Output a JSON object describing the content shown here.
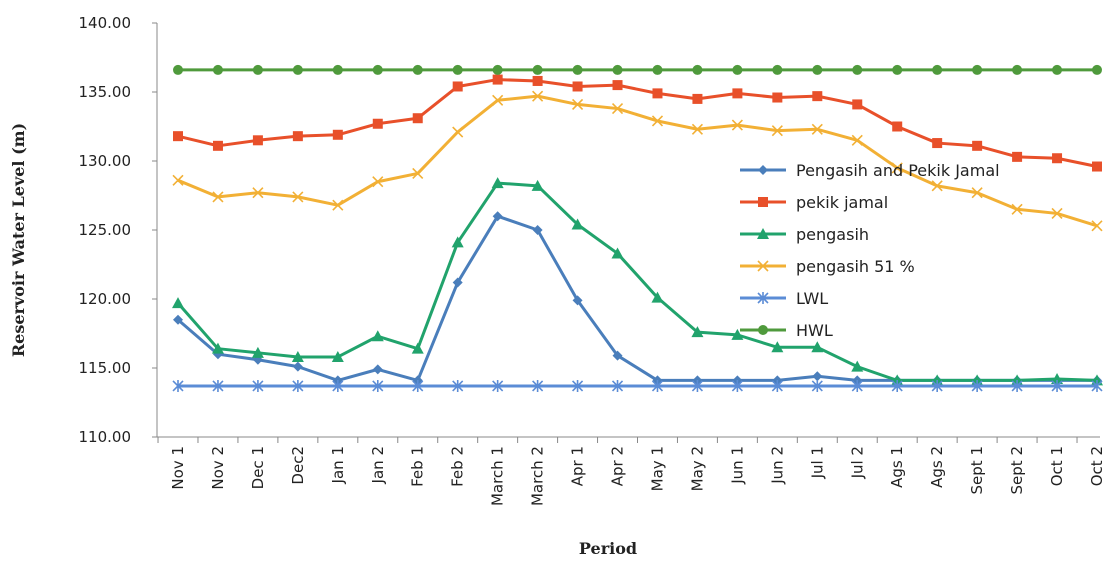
{
  "chart_data": {
    "type": "line",
    "xlabel": "Period",
    "ylabel": "Reservoir Water Level (m)",
    "ylim": [
      110,
      140
    ],
    "yticks": [
      "110.00",
      "115.00",
      "120.00",
      "125.00",
      "130.00",
      "135.00",
      "140.00"
    ],
    "grid": false,
    "legend_position": "right",
    "categories": [
      "Nov 1",
      "Nov 2",
      "Dec 1",
      "Dec2",
      "Jan 1",
      "Jan 2",
      "Feb 1",
      "Feb 2",
      "March 1",
      "March 2",
      "Apr 1",
      "Apr 2",
      "May 1",
      "May 2",
      "Jun 1",
      "Jun 2",
      "Jul 1",
      "Jul 2",
      "Ags 1",
      "Ags 2",
      "Sept 1",
      "Sept 2",
      "Oct 1",
      "Oct 2"
    ],
    "series": [
      {
        "name": "Pengasih and Pekik Jamal",
        "color": "#4a7ebb",
        "marker": "diamond",
        "values": [
          118.5,
          116.0,
          115.6,
          115.1,
          114.1,
          114.9,
          114.1,
          121.2,
          126.0,
          125.0,
          119.9,
          115.9,
          114.1,
          114.1,
          114.1,
          114.1,
          114.4,
          114.1,
          114.1,
          114.1,
          114.1,
          114.1,
          114.1,
          114.1
        ]
      },
      {
        "name": "pekik jamal",
        "color": "#e8502a",
        "marker": "square",
        "values": [
          131.8,
          131.1,
          131.5,
          131.8,
          131.9,
          132.7,
          133.1,
          135.4,
          135.9,
          135.8,
          135.4,
          135.5,
          134.9,
          134.5,
          134.9,
          134.6,
          134.7,
          134.1,
          132.5,
          131.3,
          131.1,
          130.3,
          130.2,
          129.6
        ]
      },
      {
        "name": "pengasih",
        "color": "#21a36c",
        "marker": "triangle",
        "values": [
          119.7,
          116.4,
          116.1,
          115.8,
          115.8,
          117.3,
          116.4,
          124.1,
          128.4,
          128.2,
          125.4,
          123.3,
          120.1,
          117.6,
          117.4,
          116.5,
          116.5,
          115.1,
          114.1,
          114.1,
          114.1,
          114.1,
          114.2,
          114.1
        ]
      },
      {
        "name": "pengasih 51 %",
        "color": "#f2b035",
        "marker": "x",
        "values": [
          128.6,
          127.4,
          127.7,
          127.4,
          126.8,
          128.5,
          129.1,
          132.1,
          134.4,
          134.7,
          134.1,
          133.8,
          132.9,
          132.3,
          132.6,
          132.2,
          132.3,
          131.5,
          129.5,
          128.2,
          127.7,
          126.5,
          126.2,
          125.3
        ]
      },
      {
        "name": "LWL",
        "color": "#5b8cd6",
        "marker": "asterisk",
        "values": [
          113.7,
          113.7,
          113.7,
          113.7,
          113.7,
          113.7,
          113.7,
          113.7,
          113.7,
          113.7,
          113.7,
          113.7,
          113.7,
          113.7,
          113.7,
          113.7,
          113.7,
          113.7,
          113.7,
          113.7,
          113.7,
          113.7,
          113.7,
          113.7
        ]
      },
      {
        "name": "HWL",
        "color": "#4f9a3c",
        "marker": "circle",
        "values": [
          136.6,
          136.6,
          136.6,
          136.6,
          136.6,
          136.6,
          136.6,
          136.6,
          136.6,
          136.6,
          136.6,
          136.6,
          136.6,
          136.6,
          136.6,
          136.6,
          136.6,
          136.6,
          136.6,
          136.6,
          136.6,
          136.6,
          136.6,
          136.6
        ]
      }
    ]
  }
}
